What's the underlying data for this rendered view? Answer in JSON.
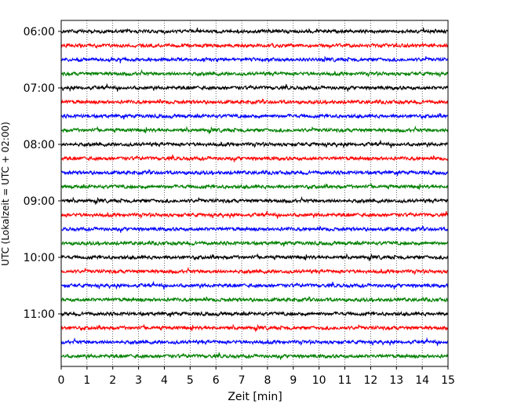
{
  "chart_data": {
    "type": "line",
    "xlabel": "Zeit  [min]",
    "ylabel": "UTC (Lokalzeit = UTC + 02:00)",
    "xlim": [
      0,
      15
    ],
    "x_ticks": [
      0,
      1,
      2,
      3,
      4,
      5,
      6,
      7,
      8,
      9,
      10,
      11,
      12,
      13,
      14,
      15
    ],
    "grid": "vertical-dotted",
    "y_ticks": [
      {
        "label": "06:00",
        "row": 0
      },
      {
        "label": "07:00",
        "row": 4
      },
      {
        "label": "08:00",
        "row": 8
      },
      {
        "label": "09:00",
        "row": 12
      },
      {
        "label": "10:00",
        "row": 16
      },
      {
        "label": "11:00",
        "row": 20
      }
    ],
    "row_count": 24,
    "row_colors": [
      "#000000",
      "#ff0000",
      "#0000ff",
      "#008000"
    ],
    "rows": [
      {
        "start": "06:00"
      },
      {
        "start": "06:15"
      },
      {
        "start": "06:30"
      },
      {
        "start": "06:45"
      },
      {
        "start": "07:00"
      },
      {
        "start": "07:15"
      },
      {
        "start": "07:30"
      },
      {
        "start": "07:45"
      },
      {
        "start": "08:00"
      },
      {
        "start": "08:15"
      },
      {
        "start": "08:30"
      },
      {
        "start": "08:45"
      },
      {
        "start": "09:00"
      },
      {
        "start": "09:15"
      },
      {
        "start": "09:30"
      },
      {
        "start": "09:45"
      },
      {
        "start": "10:00"
      },
      {
        "start": "10:15"
      },
      {
        "start": "10:30"
      },
      {
        "start": "10:45"
      },
      {
        "start": "11:00"
      },
      {
        "start": "11:15"
      },
      {
        "start": "11:30"
      },
      {
        "start": "11:45"
      }
    ]
  }
}
